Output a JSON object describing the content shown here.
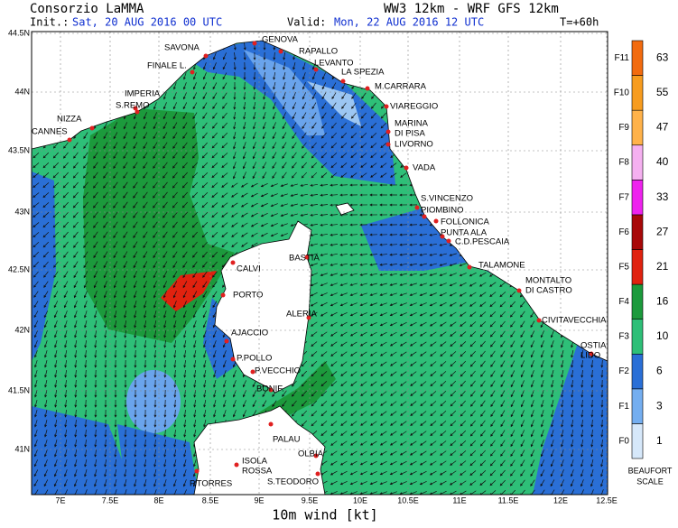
{
  "header": {
    "title_left": "Consorzio LaMMA",
    "title_right": "WW3 12km - WRF GFS 12km",
    "init_label": "Init.:",
    "init_value": "Sat, 20 AUG 2016  00 UTC",
    "valid_label": "Valid:",
    "valid_value": "Mon, 22 AUG 2016  12 UTC",
    "lead": "T=+60h"
  },
  "map": {
    "lon_ticks": [
      "7E",
      "7.5E",
      "8E",
      "8.5E",
      "9E",
      "9.5E",
      "10E",
      "10.5E",
      "11E",
      "11.5E",
      "12E",
      "12.5E"
    ],
    "lat_ticks": [
      "44.5N",
      "44N",
      "43.5N",
      "43N",
      "42.5N",
      "42N",
      "41.5N",
      "41N"
    ],
    "places": [
      {
        "lines": [
          "GENOVA"
        ]
      },
      {
        "lines": [
          "RAPALLO"
        ]
      },
      {
        "lines": [
          "SAVONA"
        ]
      },
      {
        "lines": [
          "FINALE L."
        ]
      },
      {
        "lines": [
          "LEVANTO"
        ]
      },
      {
        "lines": [
          "LA SPEZIA"
        ]
      },
      {
        "lines": [
          "M.CARRARA"
        ]
      },
      {
        "lines": [
          "IMPERIA"
        ]
      },
      {
        "lines": [
          "S.REMO"
        ]
      },
      {
        "lines": [
          "VIAREGGIO"
        ]
      },
      {
        "lines": [
          "NIZZA"
        ]
      },
      {
        "lines": [
          "MARINA",
          "DI PISA"
        ]
      },
      {
        "lines": [
          "CANNES"
        ]
      },
      {
        "lines": [
          "LIVORNO"
        ]
      },
      {
        "lines": [
          "VADA"
        ]
      },
      {
        "lines": [
          "S.VINCENZO"
        ]
      },
      {
        "lines": [
          "PIOMBINO"
        ]
      },
      {
        "lines": [
          "FOLLONICA"
        ]
      },
      {
        "lines": [
          "PUNTA ALA"
        ]
      },
      {
        "lines": [
          "C.D.PESCAIA"
        ]
      },
      {
        "lines": [
          "TALAMONE"
        ]
      },
      {
        "lines": [
          "BASTIA"
        ]
      },
      {
        "lines": [
          "CALVI"
        ]
      },
      {
        "lines": [
          "MONTALTO",
          "DI CASTRO"
        ]
      },
      {
        "lines": [
          "PORTO"
        ]
      },
      {
        "lines": [
          "ALERIA"
        ]
      },
      {
        "lines": [
          "CIVITAVECCHIA"
        ]
      },
      {
        "lines": [
          "AJACCIO"
        ]
      },
      {
        "lines": [
          "OSTIA",
          "LIDO"
        ]
      },
      {
        "lines": [
          "P.POLLO"
        ]
      },
      {
        "lines": [
          "P.VECCHIO"
        ]
      },
      {
        "lines": [
          "BONIF."
        ]
      },
      {
        "lines": [
          "PALAU"
        ]
      },
      {
        "lines": [
          "OLBIA"
        ]
      },
      {
        "lines": [
          "ISOLA",
          "ROSSA"
        ]
      },
      {
        "lines": [
          "P.TORRES"
        ]
      },
      {
        "lines": [
          "S.TEODORO"
        ]
      }
    ],
    "x_label": "10m wind [kt]"
  },
  "legend": {
    "beaufort": [
      "F0",
      "F1",
      "F2",
      "F3",
      "F4",
      "F5",
      "F6",
      "F7",
      "F8",
      "F9",
      "F10",
      "F11"
    ],
    "speeds": [
      1,
      3,
      6,
      10,
      16,
      21,
      27,
      33,
      40,
      47,
      55,
      63
    ],
    "title": [
      "BEAUFORT",
      "SCALE"
    ]
  }
}
